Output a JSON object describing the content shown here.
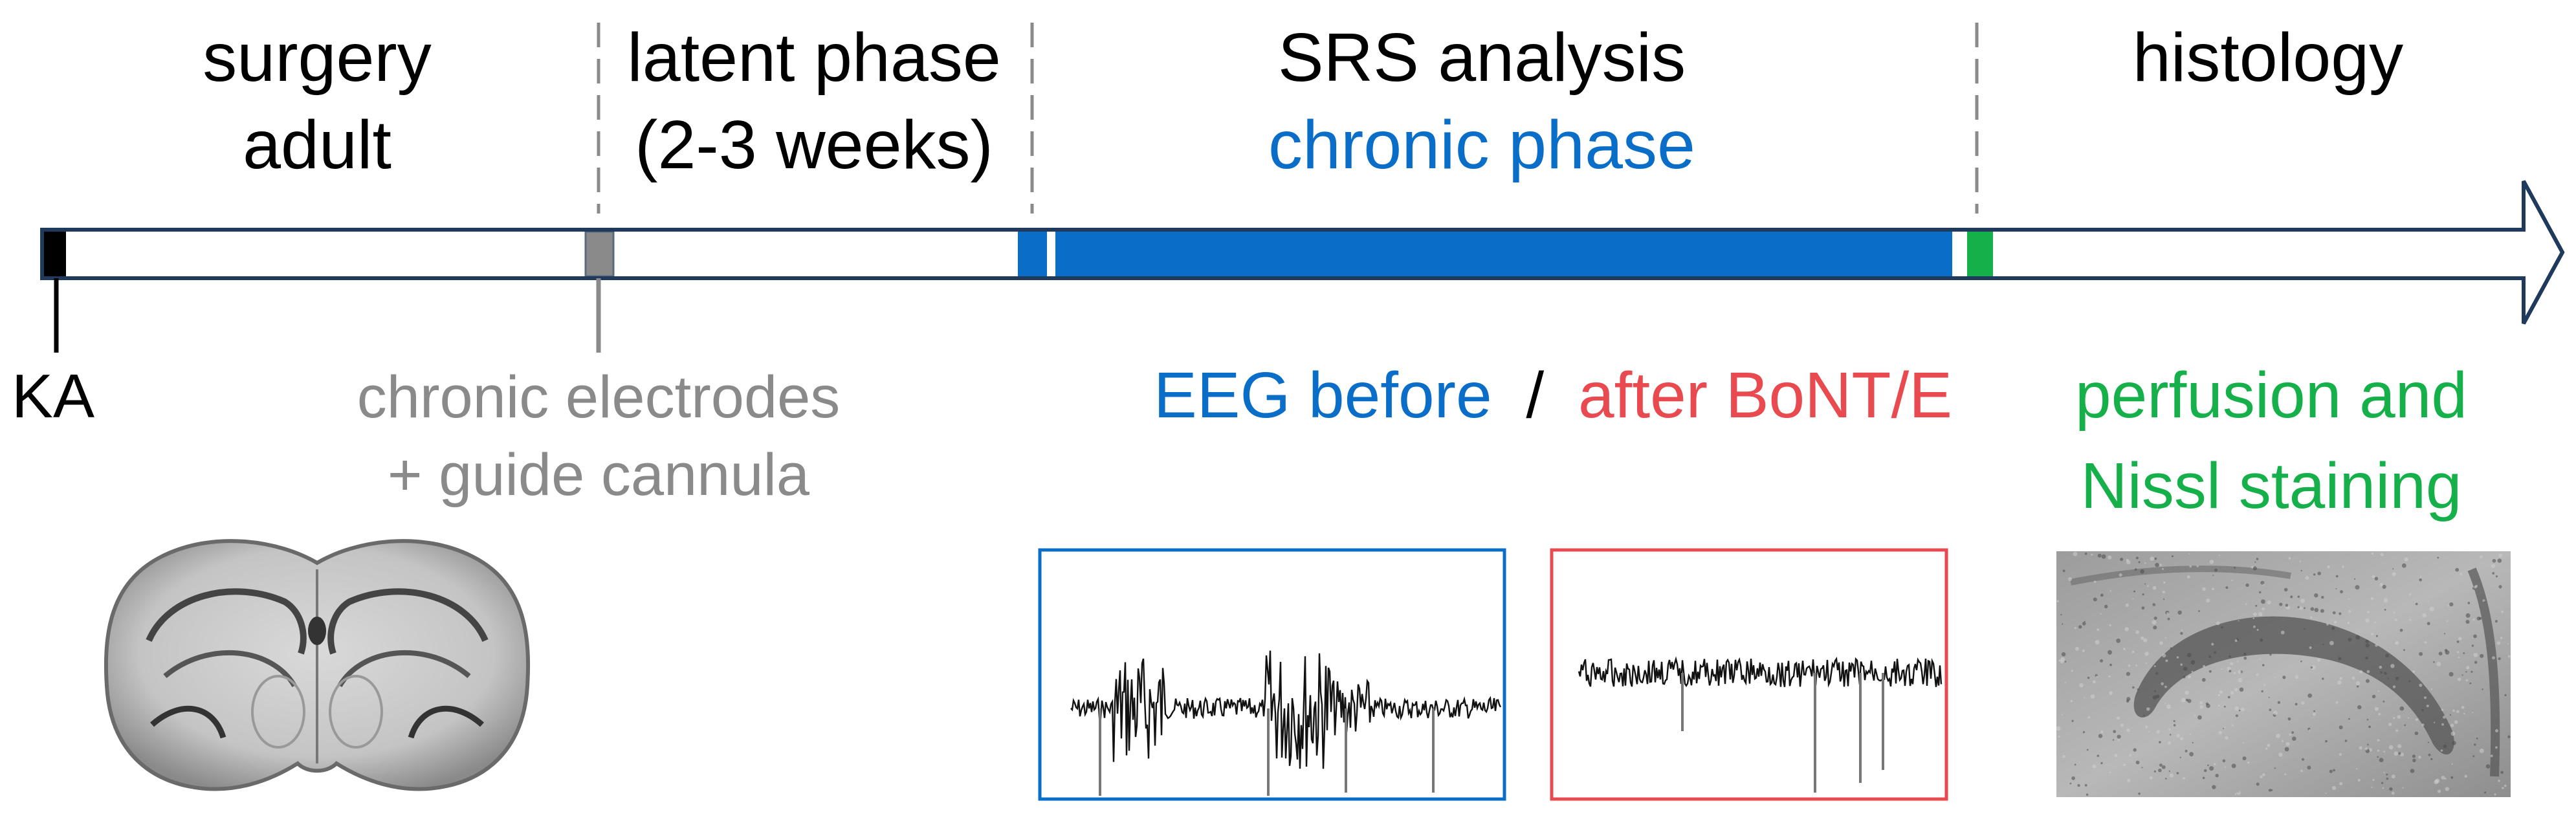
{
  "phases": [
    {
      "id": "surgery",
      "line1": "surgery",
      "line2": "adult"
    },
    {
      "id": "latent",
      "line1": "latent phase",
      "line2": "(2-3 weeks)"
    },
    {
      "id": "srs",
      "line1": "SRS analysis",
      "line2": "chronic phase"
    },
    {
      "id": "histology",
      "line1": "histology",
      "line2": ""
    }
  ],
  "events": {
    "ka": "KA",
    "electrodes_line1": "chronic electrodes",
    "electrodes_line2": "+ guide cannula",
    "eeg_before": "EEG before",
    "eeg_separator": "/",
    "eeg_after": "after BoNT/E",
    "perfusion_line1": "perfusion and",
    "perfusion_line2": "Nissl staining"
  },
  "images": {
    "brain": "coronal-brain-section",
    "eeg_before_trace": "eeg-trace-before",
    "eeg_after_trace": "eeg-trace-after",
    "hippocampus": "nissl-hippocampus-section"
  },
  "colors": {
    "outline": "#1f3a5c",
    "blue": "#0a6ec8",
    "red": "#e84a4f",
    "green": "#16b04a",
    "gray": "#8a8a8a",
    "black": "#000000"
  }
}
